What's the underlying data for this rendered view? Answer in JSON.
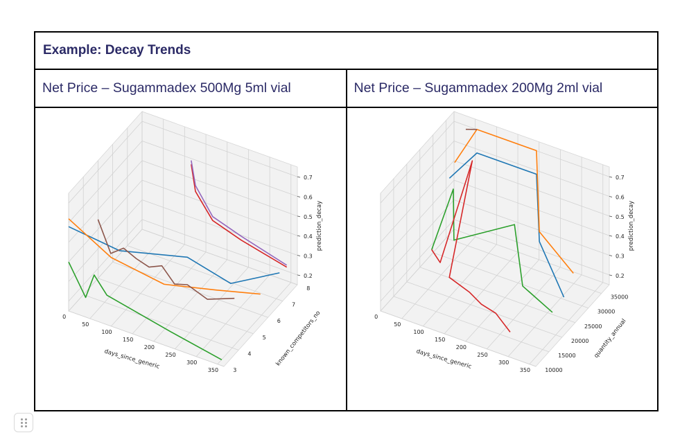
{
  "slide": {
    "title": "Example: Decay Trends",
    "left_heading": "Net Price – Sugammadex 500Mg 5ml vial",
    "right_heading": "Net Price – Sugammadex 200Mg 2ml vial"
  },
  "chart_data": [
    {
      "type": "line",
      "title": "",
      "xlabel": "days_since_generic",
      "ylabel": "known_competitors_no",
      "zlabel": "prediction_decay",
      "x_ticks": [
        "0",
        "50",
        "100",
        "150",
        "200",
        "250",
        "300",
        "350"
      ],
      "y_ticks": [
        "3",
        "4",
        "5",
        "6",
        "7",
        "8"
      ],
      "z_ticks": [
        "0.2",
        "0.3",
        "0.4",
        "0.5",
        "0.6",
        "0.7"
      ],
      "xlim": [
        0,
        365
      ],
      "ylim": [
        3,
        8
      ],
      "zlim": [
        0.15,
        0.75
      ],
      "series": [
        {
          "color": "#1f77b4",
          "points": [
            [
              0,
              3,
              0.58
            ],
            [
              120,
              3,
              0.55
            ],
            [
              210,
              5,
              0.42
            ],
            [
              260,
              6.5,
              0.2
            ],
            [
              330,
              7.8,
              0.2
            ]
          ]
        },
        {
          "color": "#ff7f0e",
          "points": [
            [
              0,
              3,
              0.62
            ],
            [
              100,
              3,
              0.5
            ],
            [
              190,
              4,
              0.35
            ],
            [
              260,
              5.5,
              0.25
            ],
            [
              330,
              6.5,
              0.2
            ]
          ]
        },
        {
          "color": "#2ca02c",
          "points": [
            [
              0,
              3,
              0.4
            ],
            [
              40,
              3,
              0.25
            ],
            [
              60,
              3,
              0.38
            ],
            [
              90,
              3,
              0.3
            ],
            [
              240,
              3,
              0.23
            ],
            [
              360,
              3,
              0.18
            ]
          ]
        },
        {
          "color": "#d62728",
          "points": [
            [
              150,
              7,
              0.68
            ],
            [
              160,
              7,
              0.55
            ],
            [
              190,
              7.3,
              0.4
            ],
            [
              250,
              7.5,
              0.33
            ],
            [
              340,
              8,
              0.22
            ]
          ]
        },
        {
          "color": "#9467bd",
          "points": [
            [
              150,
              7,
              0.7
            ],
            [
              160,
              7,
              0.58
            ],
            [
              190,
              7.3,
              0.42
            ],
            [
              250,
              7.5,
              0.35
            ],
            [
              340,
              8,
              0.23
            ]
          ]
        },
        {
          "color": "#8c564b",
          "points": [
            [
              0,
              5,
              0.45
            ],
            [
              30,
              5,
              0.3
            ],
            [
              60,
              5,
              0.35
            ],
            [
              90,
              5,
              0.32
            ],
            [
              120,
              5,
              0.3
            ],
            [
              150,
              5,
              0.33
            ],
            [
              180,
              5,
              0.26
            ],
            [
              210,
              5,
              0.28
            ],
            [
              250,
              5.2,
              0.22
            ],
            [
              300,
              5.6,
              0.23
            ]
          ]
        }
      ]
    },
    {
      "type": "line",
      "title": "",
      "xlabel": "days_since_generic",
      "ylabel": "quantity_annual",
      "zlabel": "prediction_decay",
      "x_ticks": [
        "0",
        "50",
        "100",
        "150",
        "200",
        "250",
        "300",
        "350"
      ],
      "y_ticks": [
        "10000",
        "15000",
        "20000",
        "25000",
        "30000",
        "35000"
      ],
      "z_ticks": [
        "0.2",
        "0.3",
        "0.4",
        "0.5",
        "0.6",
        "0.7"
      ],
      "xlim": [
        0,
        365
      ],
      "ylim": [
        10000,
        38000
      ],
      "zlim": [
        0.15,
        0.75
      ],
      "series": [
        {
          "color": "#1f77b4",
          "points": [
            [
              20,
              33000,
              0.5
            ],
            [
              60,
              37000,
              0.6
            ],
            [
              200,
              37000,
              0.6
            ],
            [
              250,
              30000,
              0.4
            ],
            [
              320,
              28000,
              0.2
            ]
          ]
        },
        {
          "color": "#ff7f0e",
          "points": [
            [
              20,
              35000,
              0.55
            ],
            [
              60,
              37000,
              0.72
            ],
            [
              200,
              37000,
              0.72
            ],
            [
              250,
              30000,
              0.45
            ],
            [
              330,
              30000,
              0.3
            ]
          ]
        },
        {
          "color": "#2ca02c",
          "points": [
            [
              40,
              23000,
              0.3
            ],
            [
              60,
              28000,
              0.55
            ],
            [
              80,
              25000,
              0.35
            ],
            [
              210,
              27000,
              0.5
            ],
            [
              260,
              22000,
              0.3
            ],
            [
              330,
              22000,
              0.22
            ]
          ]
        },
        {
          "color": "#d62728",
          "points": [
            [
              40,
              23000,
              0.3
            ],
            [
              60,
              23000,
              0.25
            ],
            [
              80,
              32000,
              0.65
            ],
            [
              100,
              20000,
              0.25
            ],
            [
              160,
              18000,
              0.25
            ],
            [
              200,
              16000,
              0.25
            ],
            [
              240,
              15000,
              0.25
            ],
            [
              280,
              14000,
              0.2
            ]
          ]
        },
        {
          "color": "#8c564b",
          "points": [
            [
              40,
              36000,
              0.72
            ],
            [
              60,
              37000,
              0.72
            ]
          ]
        }
      ]
    }
  ]
}
